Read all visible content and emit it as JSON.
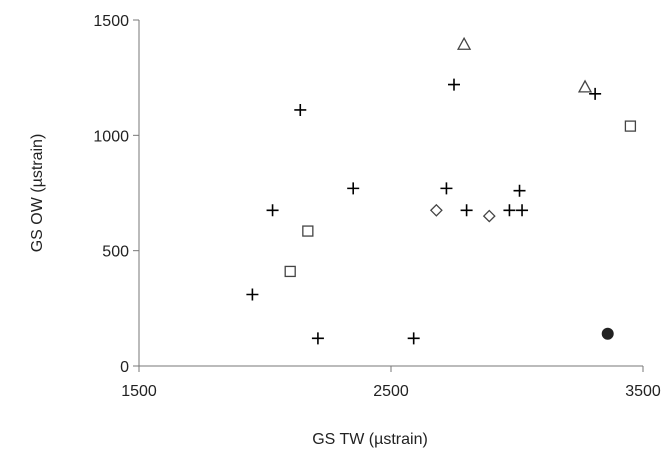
{
  "chart_data": {
    "type": "scatter",
    "xlabel": "GS TW (µstrain)",
    "ylabel": "GS OW (µstrain)",
    "xlim": [
      1500,
      3500
    ],
    "ylim": [
      0,
      1500
    ],
    "x_ticks": [
      "1500",
      "2500",
      "3500"
    ],
    "y_ticks": [
      "0",
      "500",
      "1000",
      "1500"
    ],
    "grid": false,
    "series": [
      {
        "marker": "plus",
        "color": "#000000",
        "points": [
          {
            "x": 1950,
            "y": 310
          },
          {
            "x": 2030,
            "y": 675
          },
          {
            "x": 2140,
            "y": 1110
          },
          {
            "x": 2210,
            "y": 120
          },
          {
            "x": 2350,
            "y": 770
          },
          {
            "x": 2590,
            "y": 120
          },
          {
            "x": 2720,
            "y": 770
          },
          {
            "x": 2750,
            "y": 1220
          },
          {
            "x": 2800,
            "y": 675
          },
          {
            "x": 2970,
            "y": 675
          },
          {
            "x": 3010,
            "y": 760
          },
          {
            "x": 3020,
            "y": 675
          },
          {
            "x": 3310,
            "y": 1180
          }
        ]
      },
      {
        "marker": "square",
        "color": "#444444",
        "points": [
          {
            "x": 2100,
            "y": 410
          },
          {
            "x": 2170,
            "y": 585
          },
          {
            "x": 3450,
            "y": 1040
          }
        ]
      },
      {
        "marker": "diamond",
        "color": "#444444",
        "points": [
          {
            "x": 2680,
            "y": 675
          },
          {
            "x": 2890,
            "y": 650
          }
        ]
      },
      {
        "marker": "triangle",
        "color": "#444444",
        "points": [
          {
            "x": 2790,
            "y": 1395
          },
          {
            "x": 3270,
            "y": 1210
          }
        ]
      },
      {
        "marker": "circle",
        "color": "#222222",
        "points": [
          {
            "x": 3360,
            "y": 140
          }
        ]
      }
    ]
  }
}
